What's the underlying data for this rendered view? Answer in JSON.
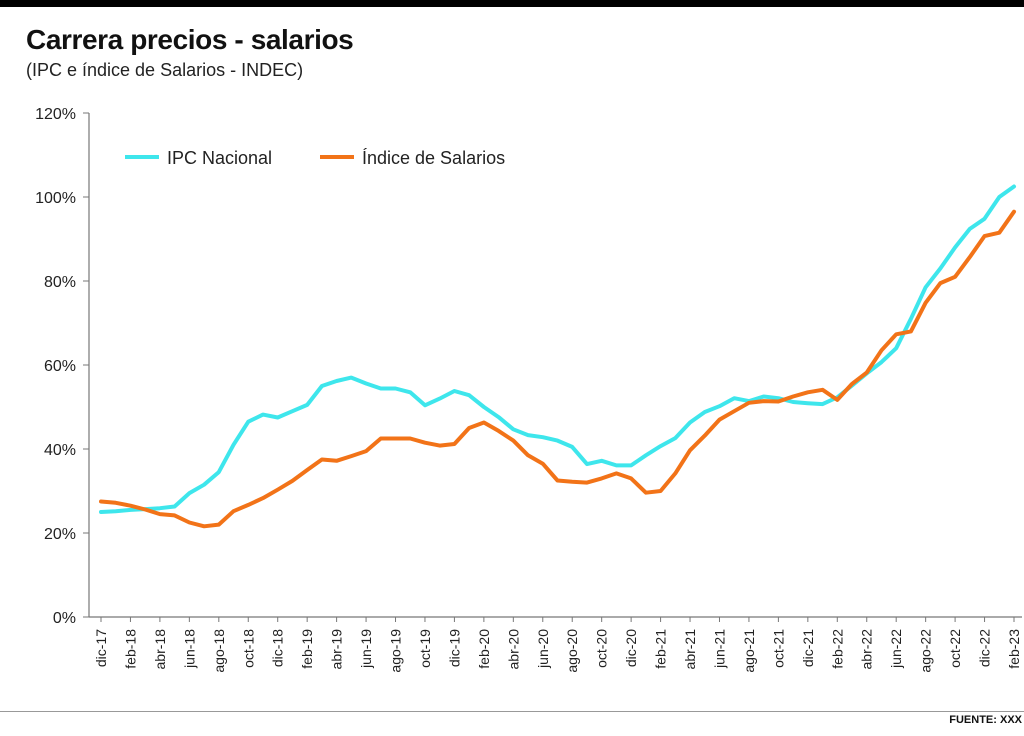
{
  "header": {
    "title": "Carrera precios - salarios",
    "subtitle": "(IPC e índice de Salarios - INDEC)"
  },
  "footer": {
    "source": "FUENTE: XXX"
  },
  "chart_data": {
    "type": "line",
    "title": "Carrera precios - salarios",
    "subtitle": "(IPC e índice de Salarios - INDEC)",
    "xlabel": "",
    "ylabel": "",
    "ylim": [
      0,
      120
    ],
    "y_ticks": [
      "0%",
      "20%",
      "40%",
      "60%",
      "80%",
      "100%",
      "120%"
    ],
    "grid": false,
    "legend_position": "top-left",
    "x": [
      "dic-17",
      "ene-18",
      "feb-18",
      "mar-18",
      "abr-18",
      "may-18",
      "jun-18",
      "jul-18",
      "ago-18",
      "sep-18",
      "oct-18",
      "nov-18",
      "dic-18",
      "ene-19",
      "feb-19",
      "mar-19",
      "abr-19",
      "may-19",
      "jun-19",
      "jul-19",
      "ago-19",
      "sep-19",
      "oct-19",
      "nov-19",
      "dic-19",
      "ene-20",
      "feb-20",
      "mar-20",
      "abr-20",
      "may-20",
      "jun-20",
      "jul-20",
      "ago-20",
      "sep-20",
      "oct-20",
      "nov-20",
      "dic-20",
      "ene-21",
      "feb-21",
      "mar-21",
      "abr-21",
      "may-21",
      "jun-21",
      "jul-21",
      "ago-21",
      "sep-21",
      "oct-21",
      "nov-21",
      "dic-21",
      "ene-22",
      "feb-22",
      "mar-22",
      "abr-22",
      "may-22",
      "jun-22",
      "jul-22",
      "ago-22",
      "sep-22",
      "oct-22",
      "nov-22",
      "dic-22",
      "ene-23",
      "feb-23"
    ],
    "x_tick_labels": [
      "dic-17",
      "feb-18",
      "abr-18",
      "jun-18",
      "ago-18",
      "oct-18",
      "dic-18",
      "feb-19",
      "abr-19",
      "jun-19",
      "ago-19",
      "oct-19",
      "dic-19",
      "feb-20",
      "abr-20",
      "jun-20",
      "ago-20",
      "oct-20",
      "dic-20",
      "feb-21",
      "abr-21",
      "jun-21",
      "ago-21",
      "oct-21",
      "dic-21",
      "feb-22",
      "abr-22",
      "jun-22",
      "ago-22",
      "oct-22",
      "dic-22",
      "feb-23"
    ],
    "series": [
      {
        "name": "IPC Nacional",
        "color": "#3ee6ec",
        "values": [
          25.0,
          25.2,
          25.5,
          25.7,
          25.9,
          26.3,
          29.5,
          31.5,
          34.5,
          41.0,
          46.5,
          48.2,
          47.5,
          49.0,
          50.5,
          55.0,
          56.2,
          57.0,
          55.6,
          54.4,
          54.4,
          53.5,
          50.4,
          52.0,
          53.8,
          52.8,
          50.0,
          47.6,
          44.7,
          43.3,
          42.8,
          42.0,
          40.5,
          36.4,
          37.2,
          36.1,
          36.1,
          38.5,
          40.7,
          42.6,
          46.3,
          48.8,
          50.2,
          52.1,
          51.4,
          52.5,
          52.1,
          51.2,
          50.9,
          50.7,
          52.3,
          55.1,
          58.0,
          60.7,
          64.0,
          71.0,
          78.5,
          83.0,
          88.0,
          92.4,
          94.8,
          100.0,
          102.5
        ]
      },
      {
        "name": "Índice de Salarios",
        "color": "#f27318",
        "values": [
          27.5,
          27.2,
          26.5,
          25.6,
          24.5,
          24.2,
          22.5,
          21.6,
          22.0,
          25.2,
          26.7,
          28.3,
          30.3,
          32.4,
          35.0,
          37.5,
          37.2,
          38.3,
          39.5,
          42.5,
          42.5,
          42.5,
          41.5,
          40.8,
          41.2,
          45.0,
          46.3,
          44.3,
          42.0,
          38.5,
          36.5,
          32.5,
          32.2,
          32.0,
          33.0,
          34.2,
          33.0,
          29.6,
          30.0,
          34.2,
          39.7,
          43.2,
          47.0,
          49.0,
          51.0,
          51.4,
          51.3,
          52.5,
          53.5,
          54.1,
          51.7,
          55.5,
          58.2,
          63.5,
          67.3,
          68.0,
          74.8,
          79.5,
          81.0,
          85.7,
          90.7,
          91.5,
          96.5
        ]
      }
    ]
  }
}
